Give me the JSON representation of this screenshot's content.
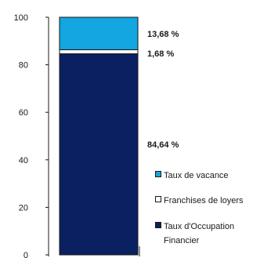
{
  "chart_data": {
    "type": "bar",
    "stacked": true,
    "orientation": "vertical",
    "categories": [
      ""
    ],
    "series": [
      {
        "name": "Taux d'Occupation Financier",
        "values": [
          84.64
        ],
        "label": "84,64 %",
        "color": "#0b2060"
      },
      {
        "name": "Franchises de loyers",
        "values": [
          1.68
        ],
        "label": "1,68 %",
        "color": "#ffffff"
      },
      {
        "name": "Taux de vacance",
        "values": [
          13.68
        ],
        "label": "13,68 %",
        "color": "#13a6e0"
      }
    ],
    "ylim": [
      0,
      100
    ],
    "yticks": [
      "0",
      "20",
      "40",
      "60",
      "80",
      "100"
    ],
    "title": "",
    "xlabel": "",
    "ylabel": "",
    "grid": false,
    "legend": {
      "position": "right",
      "entries": [
        {
          "lines": [
            "Taux de vacance"
          ],
          "color": "#13a6e0"
        },
        {
          "lines": [
            "Franchises de loyers"
          ],
          "color": "#ffffff"
        },
        {
          "lines": [
            "Taux d'Occupation",
            "Financier"
          ],
          "color": "#0b2060"
        }
      ]
    }
  }
}
